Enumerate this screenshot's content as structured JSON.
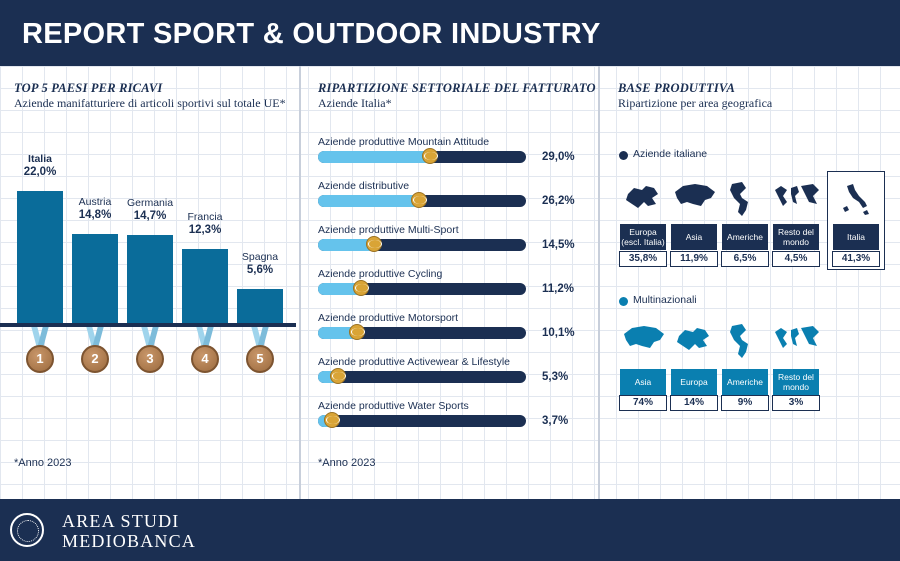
{
  "header": {
    "title": "REPORT SPORT & OUTDOOR INDUSTRY"
  },
  "footer": {
    "line1": "AREA STUDI",
    "line2": "MEDIOBANCA"
  },
  "panel1": {
    "title": "TOP 5 PAESI PER RICAVI",
    "subtitle": "Aziende manifatturiere di articoli sportivi sul totale UE*",
    "note": "*Anno 2023"
  },
  "panel2": {
    "title": "RIPARTIZIONE SETTORIALE DEL FATTURATO",
    "subtitle": "Aziende Italia*",
    "note": "*Anno 2023"
  },
  "panel3": {
    "title": "BASE PRODUTTIVA",
    "subtitle": "Ripartizione per area geografica",
    "legend_italian": "Aziende italiane",
    "legend_multi": "Multinazionali",
    "color_italian": "#1b2f52",
    "color_multi": "#0a7fb0"
  },
  "chart_data": [
    {
      "type": "bar",
      "title": "TOP 5 PAESI PER RICAVI",
      "subtitle": "Aziende manifatturiere di articoli sportivi sul totale UE*",
      "categories": [
        "Italia",
        "Austria",
        "Germania",
        "Francia",
        "Spagna"
      ],
      "values": [
        22.0,
        14.8,
        14.7,
        12.3,
        5.6
      ],
      "value_labels": [
        "22,0%",
        "14,8%",
        "14,7%",
        "12,3%",
        "5,6%"
      ],
      "ranks": [
        "1",
        "2",
        "3",
        "4",
        "5"
      ],
      "ylim": [
        0,
        25
      ],
      "color": "#0a6c9a"
    },
    {
      "type": "bar",
      "orientation": "horizontal",
      "title": "RIPARTIZIONE SETTORIALE DEL FATTURATO",
      "subtitle": "Aziende Italia*",
      "categories": [
        "Aziende produttive Mountain Attitude",
        "Aziende distributive",
        "Aziende produttive Multi-Sport",
        "Aziende produttive Cycling",
        "Aziende produttive Motorsport",
        "Aziende produttive Activewear & Lifestyle",
        "Aziende produttive Water Sports"
      ],
      "values": [
        29.0,
        26.2,
        14.5,
        11.2,
        10.1,
        5.3,
        3.7
      ],
      "value_labels": [
        "29,0%",
        "26,2%",
        "14,5%",
        "11,2%",
        "10,1%",
        "5,3%",
        "3,7%"
      ],
      "xlim": [
        0,
        100
      ],
      "color": "#65c3ec"
    },
    {
      "type": "table",
      "title": "BASE PRODUTTIVA",
      "subtitle": "Ripartizione per area geografica",
      "groups": [
        {
          "name": "Aziende italiane",
          "categories": [
            "Europa\n(escl. Italia)",
            "Asia",
            "Americhe",
            "Resto del\nmondo",
            "Italia"
          ],
          "values": [
            35.8,
            11.9,
            6.5,
            4.5,
            41.3
          ],
          "value_labels": [
            "35,8%",
            "11,9%",
            "6,5%",
            "4,5%",
            "41,3%"
          ]
        },
        {
          "name": "Multinazionali",
          "categories": [
            "Asia",
            "Europa",
            "Americhe",
            "Resto del\nmondo"
          ],
          "values": [
            74,
            14,
            9,
            3
          ],
          "value_labels": [
            "74%",
            "14%",
            "9%",
            "3%"
          ]
        }
      ]
    }
  ]
}
